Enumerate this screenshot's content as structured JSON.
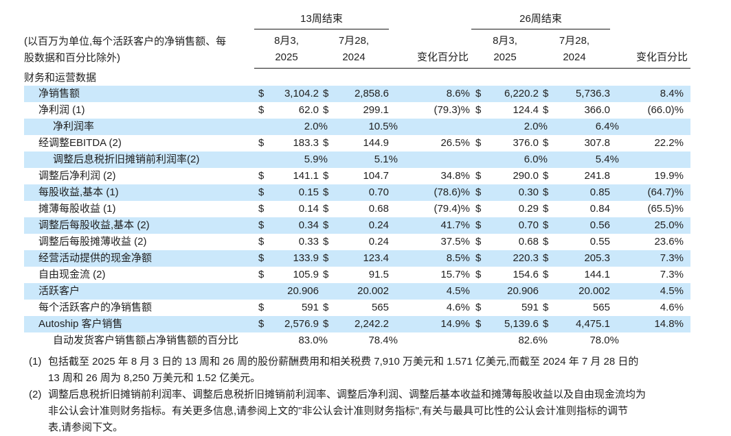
{
  "page": {
    "background": "#ffffff",
    "text_color": "#1f1f1f",
    "stripe_color": "#cbe8fb",
    "rule_color": "#1a1a1a"
  },
  "table": {
    "unit_note": "(以百万为单位,每个活跃客户的净销售额、每\n股数据和百分比除外)",
    "section_title": "财务和运营数据",
    "periods": [
      {
        "label": "13周结束"
      },
      {
        "label": "26周结束"
      }
    ],
    "columns": [
      {
        "month_day": "8月3,",
        "year": "2025"
      },
      {
        "month_day": "7月28,",
        "year": "2024"
      }
    ],
    "change_label": "变化百分比",
    "rows": [
      {
        "label": "净销售额",
        "indent": false,
        "stripe": true,
        "d1": "$",
        "v1": "3,104.2",
        "d2": "$",
        "v2": "2,858.6",
        "c1": "8.6%",
        "d3": "$",
        "v3": "6,220.2",
        "d4": "$",
        "v4": "5,736.3",
        "c2": "8.4%"
      },
      {
        "label": "净利润 (1)",
        "indent": false,
        "stripe": false,
        "d1": "$",
        "v1": "62.0",
        "d2": "$",
        "v2": "299.1",
        "c1": "(79.3)%",
        "d3": "$",
        "v3": "124.4",
        "d4": "$",
        "v4": "366.0",
        "c2": "(66.0)%"
      },
      {
        "label": "净利润率",
        "indent": true,
        "stripe": true,
        "d1": "",
        "v1": "2.0%",
        "d2": "",
        "v2": "10.5%",
        "c1": "",
        "d3": "",
        "v3": "2.0%",
        "d4": "",
        "v4": "6.4%",
        "c2": ""
      },
      {
        "label": "经调整EBITDA (2)",
        "indent": false,
        "stripe": false,
        "d1": "$",
        "v1": "183.3",
        "d2": "$",
        "v2": "144.9",
        "c1": "26.5%",
        "d3": "$",
        "v3": "376.0",
        "d4": "$",
        "v4": "307.8",
        "c2": "22.2%"
      },
      {
        "label": "调整后息税折旧摊销前利润率(2)",
        "indent": true,
        "stripe": true,
        "d1": "",
        "v1": "5.9%",
        "d2": "",
        "v2": "5.1%",
        "c1": "",
        "d3": "",
        "v3": "6.0%",
        "d4": "",
        "v4": "5.4%",
        "c2": ""
      },
      {
        "label": "调整后净利润 (2)",
        "indent": false,
        "stripe": false,
        "d1": "$",
        "v1": "141.1",
        "d2": "$",
        "v2": "104.7",
        "c1": "34.8%",
        "d3": "$",
        "v3": "290.0",
        "d4": "$",
        "v4": "241.8",
        "c2": "19.9%"
      },
      {
        "label": "每股收益,基本 (1)",
        "indent": false,
        "stripe": true,
        "d1": "$",
        "v1": "0.15",
        "d2": "$",
        "v2": "0.70",
        "c1": "(78.6)%",
        "d3": "$",
        "v3": "0.30",
        "d4": "$",
        "v4": "0.85",
        "c2": "(64.7)%"
      },
      {
        "label": "摊薄每股收益 (1)",
        "indent": false,
        "stripe": false,
        "d1": "$",
        "v1": "0.14",
        "d2": "$",
        "v2": "0.68",
        "c1": "(79.4)%",
        "d3": "$",
        "v3": "0.29",
        "d4": "$",
        "v4": "0.84",
        "c2": "(65.5)%"
      },
      {
        "label": "调整后每股收益,基本 (2)",
        "indent": false,
        "stripe": true,
        "d1": "$",
        "v1": "0.34",
        "d2": "$",
        "v2": "0.24",
        "c1": "41.7%",
        "d3": "$",
        "v3": "0.70",
        "d4": "$",
        "v4": "0.56",
        "c2": "25.0%"
      },
      {
        "label": "调整后每股摊薄收益 (2)",
        "indent": false,
        "stripe": false,
        "d1": "$",
        "v1": "0.33",
        "d2": "$",
        "v2": "0.24",
        "c1": "37.5%",
        "d3": "$",
        "v3": "0.68",
        "d4": "$",
        "v4": "0.55",
        "c2": "23.6%"
      },
      {
        "label": "经营活动提供的现金净额",
        "indent": false,
        "stripe": true,
        "d1": "$",
        "v1": "133.9",
        "d2": "$",
        "v2": "123.4",
        "c1": "8.5%",
        "d3": "$",
        "v3": "220.3",
        "d4": "$",
        "v4": "205.3",
        "c2": "7.3%"
      },
      {
        "label": "自由现金流 (2)",
        "indent": false,
        "stripe": false,
        "d1": "$",
        "v1": "105.9",
        "d2": "$",
        "v2": "91.5",
        "c1": "15.7%",
        "d3": "$",
        "v3": "154.6",
        "d4": "$",
        "v4": "144.1",
        "c2": "7.3%"
      },
      {
        "label": "活跃客户",
        "indent": false,
        "stripe": true,
        "d1": "",
        "v1": "20.906",
        "d2": "",
        "v2": "20.002",
        "c1": "4.5%",
        "d3": "",
        "v3": "20.906",
        "d4": "",
        "v4": "20.002",
        "c2": "4.5%"
      },
      {
        "label": "每个活跃客户的净销售额",
        "indent": false,
        "stripe": false,
        "d1": "$",
        "v1": "591",
        "d2": "$",
        "v2": "565",
        "c1": "4.6%",
        "d3": "$",
        "v3": "591",
        "d4": "$",
        "v4": "565",
        "c2": "4.6%"
      },
      {
        "label": "Autoship 客户销售",
        "indent": false,
        "stripe": true,
        "d1": "$",
        "v1": "2,576.9",
        "d2": "$",
        "v2": "2,242.2",
        "c1": "14.9%",
        "d3": "$",
        "v3": "5,139.6",
        "d4": "$",
        "v4": "4,475.1",
        "c2": "14.8%"
      },
      {
        "label": "自动发货客户销售额占净销售额的百分比",
        "indent": true,
        "stripe": false,
        "d1": "",
        "v1": "83.0%",
        "d2": "",
        "v2": "78.4%",
        "c1": "",
        "d3": "",
        "v3": "82.6%",
        "d4": "",
        "v4": "78.0%",
        "c2": ""
      }
    ]
  },
  "footnotes": [
    {
      "marker": "(1)",
      "text": "包括截至 2025 年 8 月 3 日的 13 周和 26 周的股份薪酬费用和相关税费 7,910 万美元和 1.571 亿美元,而截至 2024 年 7 月 28 日的\n13 周和 26 周为 8,250 万美元和 1.52 亿美元。"
    },
    {
      "marker": "(2)",
      "text": "调整后息税折旧摊销前利润率、调整后息税折旧摊销前利润率、调整后净利润、调整后基本收益和摊薄每股收益以及自由现金流均为\n非公认会计准则财务指标。有关更多信息,请参阅上文的\"非公认会计准则财务指标\",有关与最具可比性的公认会计准则指标的调节\n表,请参阅下文。"
    }
  ]
}
